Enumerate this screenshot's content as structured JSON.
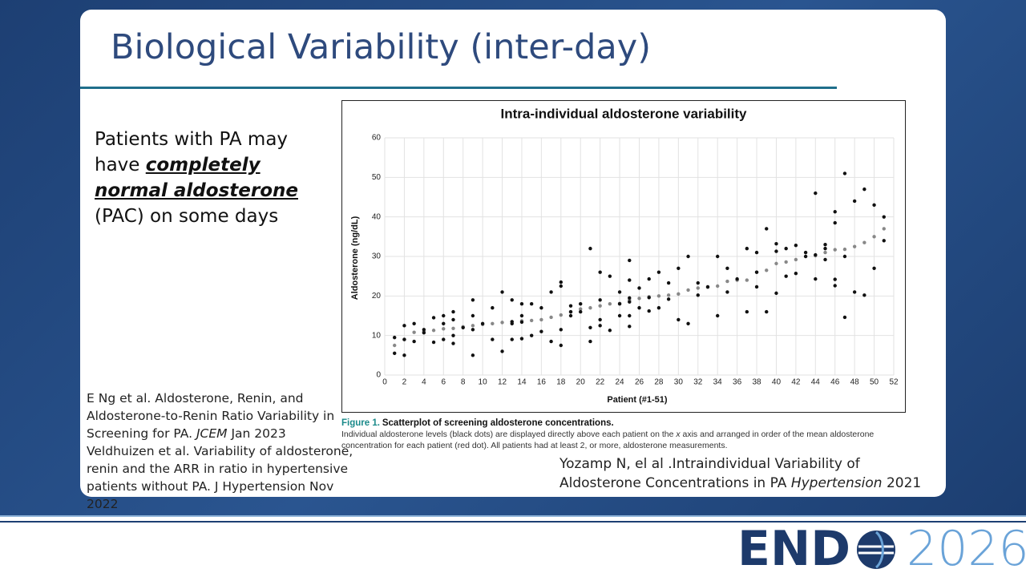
{
  "slide": {
    "title": "Biological Variability (inter-day)",
    "body": [
      "Patients with PA may have ",
      "completely normal aldosterone ",
      "(PAC) on some days"
    ],
    "references_left": [
      [
        "E Ng et al. Aldosterone, Renin, and Aldosterone-to-Renin Ratio Variability in Screening for PA. ",
        "JCEM",
        " Jan 2023"
      ],
      [
        "Veldhuizen et al. Variability of aldosterone, renin and the ARR in ratio in hypertensive patients without PA. J Hypertension Nov 2022"
      ]
    ],
    "reference_right": [
      "Yozamp N, el al .Intraindividual Variability of Aldosterone Concentrations in PA ",
      "Hypertension",
      " 2021"
    ],
    "figure_caption": {
      "label": "Figure 1.",
      "title": "Scatterplot of screening aldosterone concentrations.",
      "text": [
        "Individual aldosterone levels (black dots) are displayed directly above each patient on the ",
        "x",
        " axis and arranged in order of the mean aldosterone concentration for each patient (red dot). All patients had at least 2, or more, aldosterone measurements."
      ]
    },
    "logo": [
      "END",
      "2026"
    ]
  },
  "chart_data": {
    "type": "scatter",
    "title": "Intra-individual aldosterone variability",
    "xlabel": "Patient (#1-51)",
    "ylabel": "Aldosterone (ng/dL)",
    "xlim": [
      0,
      52
    ],
    "ylim": [
      0,
      60
    ],
    "xticks": [
      0,
      2,
      4,
      6,
      8,
      10,
      12,
      14,
      16,
      18,
      20,
      22,
      24,
      26,
      28,
      30,
      32,
      34,
      36,
      38,
      40,
      42,
      44,
      46,
      48,
      50,
      52
    ],
    "yticks": [
      0,
      10,
      20,
      30,
      40,
      50,
      60
    ],
    "grid": true,
    "series": [
      {
        "color": "#888888",
        "x": [
          1,
          2,
          3,
          4,
          5,
          6,
          7,
          8,
          9,
          10,
          11,
          12,
          13,
          14,
          15,
          16,
          17,
          18,
          19,
          20,
          21,
          22,
          23,
          24,
          25,
          26,
          27,
          28,
          29,
          30,
          31,
          32,
          33,
          34,
          35,
          36,
          37,
          38,
          39,
          40,
          41,
          42,
          43,
          44,
          45,
          46,
          47,
          48,
          49,
          50,
          51
        ],
        "values": [
          7.5,
          9,
          10.8,
          11,
          11.3,
          11.7,
          11.8,
          12.2,
          12.5,
          12.8,
          13,
          13.3,
          13.5,
          13.7,
          13.8,
          14,
          14.6,
          15.2,
          16,
          16.7,
          17,
          17.5,
          18,
          18.1,
          19,
          19.4,
          19.8,
          20,
          20.2,
          20.5,
          21.5,
          22,
          22.2,
          22.5,
          23.7,
          24,
          24,
          26,
          26.5,
          28.2,
          28.6,
          29.2,
          30,
          30.2,
          31,
          31.7,
          31.8,
          32.5,
          33.5,
          35,
          37
        ]
      },
      {
        "color": "#111111",
        "x": [
          1,
          1,
          2,
          2,
          2,
          3,
          3,
          4,
          4,
          5,
          5,
          6,
          6,
          6,
          7,
          7,
          7,
          7,
          8,
          9,
          9,
          9,
          9,
          10,
          11,
          11,
          12,
          12,
          13,
          13,
          13,
          13,
          14,
          14,
          14,
          14,
          15,
          15,
          16,
          16,
          17,
          17,
          18,
          18,
          18,
          18,
          19,
          19,
          19,
          20,
          20,
          21,
          21,
          21,
          22,
          22,
          22,
          22,
          23,
          23,
          24,
          24,
          24,
          25,
          25,
          25,
          25,
          25,
          25,
          26,
          26,
          27,
          27,
          27,
          28,
          28,
          29,
          29,
          30,
          30,
          31,
          31,
          32,
          32,
          33,
          34,
          34,
          35,
          35,
          36,
          37,
          37,
          38,
          38,
          38,
          39,
          39,
          40,
          40,
          40,
          41,
          41,
          42,
          42,
          43,
          43,
          44,
          44,
          44,
          45,
          45,
          45,
          46,
          46,
          46,
          46,
          47,
          47,
          47,
          48,
          48,
          49,
          49,
          50,
          50,
          51,
          51
        ],
        "values": [
          9.5,
          5.5,
          12.5,
          9,
          5,
          13,
          8.5,
          11.5,
          10.7,
          14.5,
          8.3,
          15,
          13,
          9,
          16,
          14,
          10,
          8,
          12,
          19,
          15,
          11.5,
          5,
          13,
          17,
          9,
          21,
          6,
          19,
          13.5,
          13,
          9,
          18,
          15,
          13.4,
          9.2,
          18,
          10,
          17,
          11,
          21,
          8.5,
          23.5,
          22.5,
          11.5,
          7.5,
          17.5,
          16,
          15,
          18,
          16,
          32,
          12,
          8.5,
          26,
          19,
          14,
          12.5,
          25,
          11.3,
          21,
          18,
          15,
          29,
          24,
          19.5,
          18.5,
          15,
          12.3,
          22,
          17,
          24.3,
          19.6,
          16.2,
          26,
          17,
          23.3,
          19.2,
          27,
          14,
          30,
          13,
          23.3,
          20.2,
          22.3,
          30,
          15,
          27,
          21,
          24.3,
          32,
          16,
          31,
          26,
          22.3,
          37,
          16,
          33.2,
          31.3,
          20.7,
          32,
          25,
          32.8,
          25.7,
          31,
          30,
          46,
          30.4,
          24.3,
          33,
          32,
          29.2,
          41.3,
          38.5,
          24.2,
          22.6,
          51,
          30,
          14.6,
          44,
          21,
          47,
          20.2,
          43,
          27,
          40,
          34
        ]
      }
    ]
  }
}
